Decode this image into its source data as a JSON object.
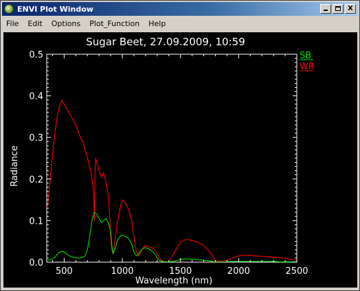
{
  "window": {
    "title": "ENVI Plot Window",
    "icon": "envi-app-icon",
    "controls": {
      "minimize": "_",
      "maximize": "□",
      "close": "X"
    }
  },
  "menu": [
    "File",
    "Edit",
    "Options",
    "Plot_Function",
    "Help"
  ],
  "chart_data": {
    "type": "line",
    "title": "Sugar Beet, 27.09.2009, 10:59",
    "xlabel": "Wavelength (nm)",
    "ylabel": "Radiance",
    "xlim": [
      350,
      2500
    ],
    "ylim": [
      0,
      0.5
    ],
    "xticks": [
      500,
      1000,
      1500,
      2000,
      2500
    ],
    "yticks": [
      0.0,
      0.1,
      0.2,
      0.3,
      0.4,
      0.5
    ],
    "ytick_labels": [
      "0.0",
      "0.1",
      "0.2",
      "0.3",
      "0.4",
      "0.5"
    ],
    "background": "#000000",
    "axis_color": "#ffffff",
    "legend_position": "top-right",
    "series": [
      {
        "name": "SB",
        "color": "#00e000",
        "x": [
          350,
          380,
          400,
          430,
          450,
          480,
          500,
          530,
          560,
          600,
          640,
          680,
          700,
          720,
          740,
          760,
          770,
          780,
          790,
          800,
          820,
          840,
          860,
          880,
          900,
          910,
          920,
          940,
          960,
          980,
          1000,
          1020,
          1050,
          1080,
          1100,
          1120,
          1140,
          1160,
          1180,
          1200,
          1220,
          1250,
          1280,
          1300,
          1320,
          1340,
          1360,
          1400,
          1440,
          1480,
          1500,
          1550,
          1600,
          1650,
          1700,
          1750,
          1790,
          1800,
          1850,
          1900,
          1950,
          2000,
          2050,
          2100,
          2150,
          2200,
          2250,
          2300,
          2350,
          2400,
          2450,
          2500
        ],
        "y": [
          0.005,
          0.006,
          0.008,
          0.015,
          0.022,
          0.026,
          0.025,
          0.018,
          0.013,
          0.01,
          0.01,
          0.015,
          0.03,
          0.062,
          0.1,
          0.12,
          0.118,
          0.115,
          0.11,
          0.105,
          0.095,
          0.1,
          0.105,
          0.095,
          0.075,
          0.04,
          0.02,
          0.035,
          0.055,
          0.062,
          0.065,
          0.063,
          0.058,
          0.045,
          0.025,
          0.015,
          0.02,
          0.028,
          0.033,
          0.035,
          0.033,
          0.028,
          0.02,
          0.01,
          0.004,
          0.002,
          0.001,
          0.001,
          0.002,
          0.005,
          0.007,
          0.008,
          0.007,
          0.006,
          0.005,
          0.003,
          0.001,
          0.0005,
          0.0005,
          0.001,
          0.002,
          0.002,
          0.002,
          0.002,
          0.002,
          0.002,
          0.002,
          0.002,
          0.001,
          0.001,
          0.001,
          0.001
        ]
      },
      {
        "name": "WR",
        "color": "#ff0000",
        "x": [
          350,
          360,
          380,
          400,
          420,
          440,
          460,
          480,
          490,
          500,
          520,
          540,
          560,
          580,
          600,
          620,
          640,
          660,
          680,
          700,
          720,
          740,
          750,
          760,
          765,
          770,
          780,
          800,
          820,
          840,
          860,
          880,
          890,
          900,
          910,
          920,
          940,
          960,
          980,
          1000,
          1020,
          1050,
          1080,
          1100,
          1120,
          1140,
          1160,
          1180,
          1200,
          1220,
          1250,
          1280,
          1300,
          1320,
          1340,
          1360,
          1400,
          1440,
          1480,
          1500,
          1550,
          1600,
          1650,
          1700,
          1750,
          1790,
          1800,
          1850,
          1900,
          1950,
          2000,
          2050,
          2100,
          2150,
          2200,
          2250,
          2300,
          2350,
          2400,
          2450,
          2500
        ],
        "y": [
          0.13,
          0.14,
          0.2,
          0.26,
          0.31,
          0.35,
          0.375,
          0.39,
          0.385,
          0.38,
          0.37,
          0.36,
          0.35,
          0.34,
          0.33,
          0.315,
          0.3,
          0.29,
          0.27,
          0.25,
          0.23,
          0.2,
          0.18,
          0.1,
          0.21,
          0.25,
          0.24,
          0.22,
          0.205,
          0.215,
          0.19,
          0.16,
          0.12,
          0.06,
          0.03,
          0.02,
          0.06,
          0.1,
          0.13,
          0.15,
          0.145,
          0.13,
          0.1,
          0.06,
          0.025,
          0.015,
          0.025,
          0.035,
          0.04,
          0.038,
          0.035,
          0.03,
          0.02,
          0.01,
          0.004,
          0.002,
          0.001,
          0.02,
          0.04,
          0.048,
          0.055,
          0.052,
          0.048,
          0.04,
          0.025,
          0.01,
          0.003,
          0.002,
          0.004,
          0.01,
          0.015,
          0.017,
          0.016,
          0.015,
          0.014,
          0.013,
          0.012,
          0.011,
          0.009,
          0.007,
          0.005
        ]
      }
    ]
  }
}
